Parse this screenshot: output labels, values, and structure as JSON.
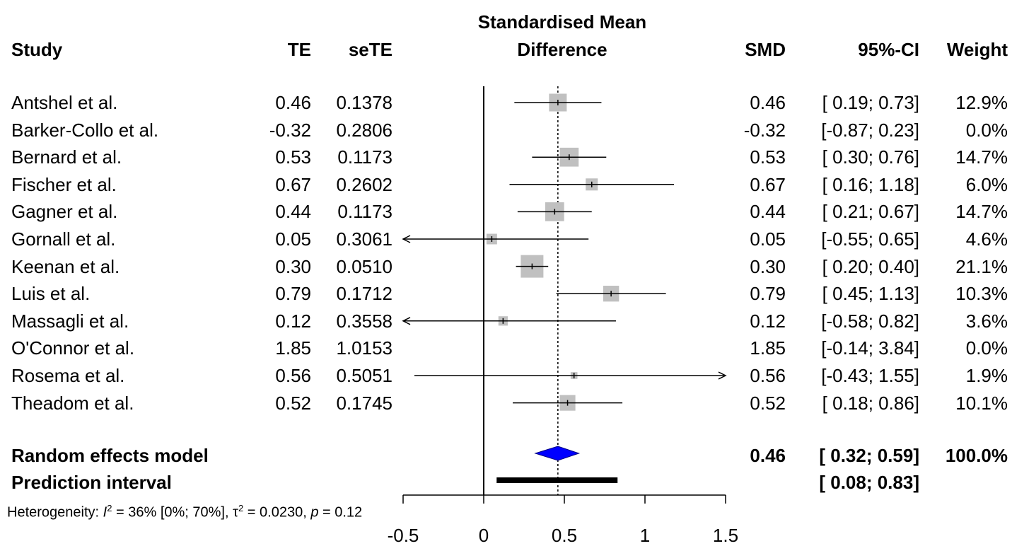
{
  "header": {
    "study": "Study",
    "te": "TE",
    "sete": "seTE",
    "plot_title_1": "Standardised Mean",
    "plot_title_2": "Difference",
    "smd": "SMD",
    "ci": "95%-CI",
    "weight": "Weight"
  },
  "rows": [
    {
      "study": "Antshel et al.",
      "te": "0.46",
      "sete": "0.1378",
      "smd": "0.46",
      "ci": "[ 0.19; 0.73]",
      "weight": "12.9%"
    },
    {
      "study": "Barker-Collo et al.",
      "te": "-0.32",
      "sete": "0.2806",
      "smd": "-0.32",
      "ci": "[-0.87; 0.23]",
      "weight": "0.0%"
    },
    {
      "study": "Bernard et al.",
      "te": "0.53",
      "sete": "0.1173",
      "smd": "0.53",
      "ci": "[ 0.30; 0.76]",
      "weight": "14.7%"
    },
    {
      "study": "Fischer et al.",
      "te": "0.67",
      "sete": "0.2602",
      "smd": "0.67",
      "ci": "[ 0.16; 1.18]",
      "weight": "6.0%"
    },
    {
      "study": "Gagner et al.",
      "te": "0.44",
      "sete": "0.1173",
      "smd": "0.44",
      "ci": "[ 0.21; 0.67]",
      "weight": "14.7%"
    },
    {
      "study": "Gornall et al.",
      "te": "0.05",
      "sete": "0.3061",
      "smd": "0.05",
      "ci": "[-0.55; 0.65]",
      "weight": "4.6%"
    },
    {
      "study": "Keenan et al.",
      "te": "0.30",
      "sete": "0.0510",
      "smd": "0.30",
      "ci": "[ 0.20; 0.40]",
      "weight": "21.1%"
    },
    {
      "study": "Luis et al.",
      "te": "0.79",
      "sete": "0.1712",
      "smd": "0.79",
      "ci": "[ 0.45; 1.13]",
      "weight": "10.3%"
    },
    {
      "study": "Massagli et al.",
      "te": "0.12",
      "sete": "0.3558",
      "smd": "0.12",
      "ci": "[-0.58; 0.82]",
      "weight": "3.6%"
    },
    {
      "study": "O'Connor et al.",
      "te": "1.85",
      "sete": "1.0153",
      "smd": "1.85",
      "ci": "[-0.14; 3.84]",
      "weight": "0.0%"
    },
    {
      "study": "Rosema et al.",
      "te": "0.56",
      "sete": "0.5051",
      "smd": "0.56",
      "ci": "[-0.43; 1.55]",
      "weight": "1.9%"
    },
    {
      "study": "Theadom et al.",
      "te": "0.52",
      "sete": "0.1745",
      "smd": "0.52",
      "ci": "[ 0.18; 0.86]",
      "weight": "10.1%"
    }
  ],
  "summary": {
    "random_label": "Random effects model",
    "random_smd": "0.46",
    "random_ci": "[ 0.32; 0.59]",
    "random_weight": "100.0%",
    "pi_label": "Prediction interval",
    "pi_ci": "[ 0.08; 0.83]"
  },
  "heterogeneity": {
    "prefix": "Heterogeneity: ",
    "i2_symbol": "I",
    "i2_value": " = 36% [0%; 70%], ",
    "tau_symbol": "τ",
    "tau_value": " = 0.0230, ",
    "p_symbol": "p",
    "p_value": " = 0.12"
  },
  "colors": {
    "square": "#c0c0c0",
    "diamond": "#0000ff",
    "line": "#000000"
  },
  "chart_data": {
    "type": "forest",
    "title": "Standardised Mean Difference",
    "xlim": [
      -0.5,
      1.5
    ],
    "ticks": [
      -0.5,
      0,
      0.5,
      1,
      1.5
    ],
    "tick_labels": [
      "-0.5",
      "0",
      "0.5",
      "1",
      "1.5"
    ],
    "null_line": 0,
    "summary_line": 0.46,
    "studies": [
      {
        "name": "Antshel et al.",
        "est": 0.46,
        "lo": 0.19,
        "hi": 0.73,
        "weight": 12.9
      },
      {
        "name": "Barker-Collo et al.",
        "est": -0.32,
        "lo": -0.87,
        "hi": 0.23,
        "weight": 0.0
      },
      {
        "name": "Bernard et al.",
        "est": 0.53,
        "lo": 0.3,
        "hi": 0.76,
        "weight": 14.7
      },
      {
        "name": "Fischer et al.",
        "est": 0.67,
        "lo": 0.16,
        "hi": 1.18,
        "weight": 6.0
      },
      {
        "name": "Gagner et al.",
        "est": 0.44,
        "lo": 0.21,
        "hi": 0.67,
        "weight": 14.7
      },
      {
        "name": "Gornall et al.",
        "est": 0.05,
        "lo": -0.55,
        "hi": 0.65,
        "weight": 4.6
      },
      {
        "name": "Keenan et al.",
        "est": 0.3,
        "lo": 0.2,
        "hi": 0.4,
        "weight": 21.1
      },
      {
        "name": "Luis et al.",
        "est": 0.79,
        "lo": 0.45,
        "hi": 1.13,
        "weight": 10.3
      },
      {
        "name": "Massagli et al.",
        "est": 0.12,
        "lo": -0.58,
        "hi": 0.82,
        "weight": 3.6
      },
      {
        "name": "O'Connor et al.",
        "est": 1.85,
        "lo": -0.14,
        "hi": 3.84,
        "weight": 0.0
      },
      {
        "name": "Rosema et al.",
        "est": 0.56,
        "lo": -0.43,
        "hi": 1.55,
        "weight": 1.9
      },
      {
        "name": "Theadom et al.",
        "est": 0.52,
        "lo": 0.18,
        "hi": 0.86,
        "weight": 10.1
      }
    ],
    "random_effects": {
      "est": 0.46,
      "lo": 0.32,
      "hi": 0.59
    },
    "prediction_interval": {
      "lo": 0.08,
      "hi": 0.83
    }
  }
}
